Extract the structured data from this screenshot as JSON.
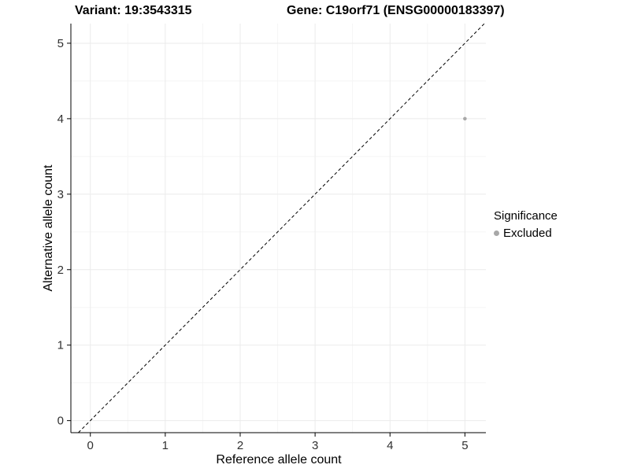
{
  "header": {
    "title_left": "Variant: 19:3543315",
    "title_right": "Gene: C19orf71 (ENSG00000183397)"
  },
  "legend": {
    "title": "Significance",
    "entries": [
      {
        "label": "Excluded",
        "color": "#a8a8a8"
      }
    ]
  },
  "chart_data": {
    "type": "scatter",
    "title_left": "Variant: 19:3543315",
    "title_right": "Gene: C19orf71 (ENSG00000183397)",
    "xlabel": "Reference allele count",
    "ylabel": "Alternative allele count",
    "xlim": [
      -0.26,
      5.28
    ],
    "ylim": [
      -0.16,
      5.26
    ],
    "xticks": [
      0,
      1,
      2,
      3,
      4,
      5
    ],
    "yticks": [
      0,
      1,
      2,
      3,
      4,
      5
    ],
    "grid": {
      "major": true,
      "minor": true
    },
    "identity_line": {
      "type": "y=x",
      "style": "dashed",
      "color": "#000000"
    },
    "points": [
      {
        "x": 5,
        "y": 4,
        "series": "Excluded"
      }
    ],
    "point_color": "#a8a8a8",
    "legend_position": "right",
    "colors": {
      "background": "#ffffff",
      "grid_major": "#ebebeb",
      "grid_minor": "#f5f5f5",
      "axis": "#000000",
      "tick_text": "#303030"
    }
  }
}
